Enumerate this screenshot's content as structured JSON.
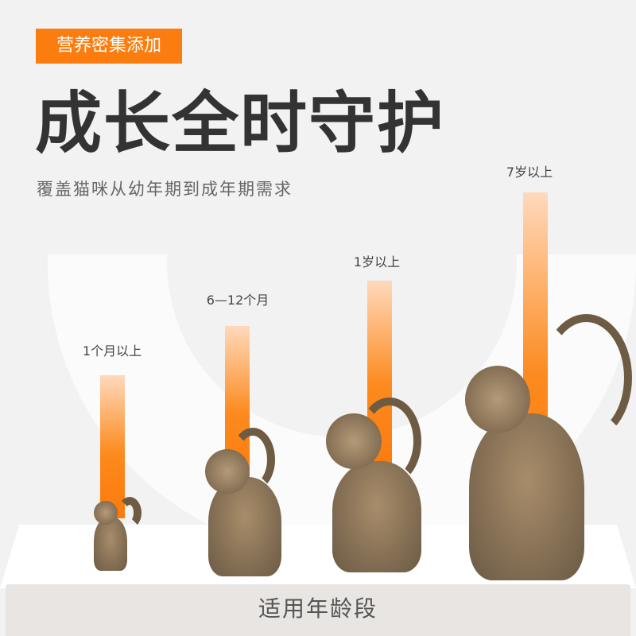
{
  "badge": "营养密集添加",
  "title": "成长全时守护",
  "subtitle": "覆盖猫咪从幼年期到成年期需求",
  "accent_color": "#fb7d10",
  "stages": [
    {
      "label": "1个月以上"
    },
    {
      "label": "6—12个月"
    },
    {
      "label": "1岁以上"
    },
    {
      "label": "7岁以上"
    }
  ],
  "footer": "适用年龄段"
}
